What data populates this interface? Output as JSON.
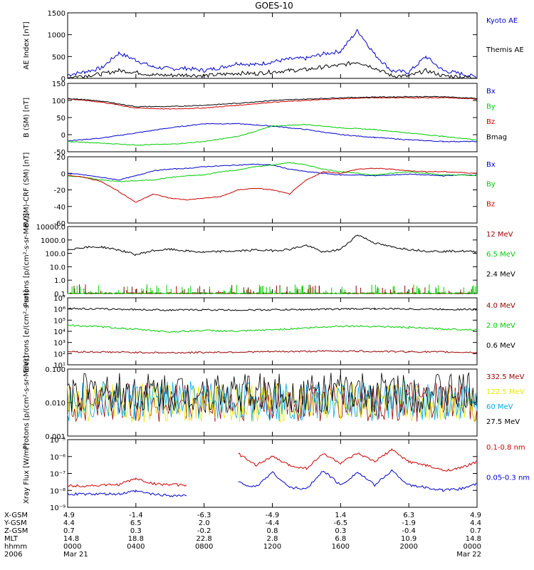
{
  "title": "GOES-10",
  "colors": {
    "black": "#000000",
    "blue": "#0000cc",
    "red": "#cc0000",
    "green": "#00cc00",
    "darkred": "#990000",
    "yellow": "#e6e600",
    "cyan": "#00aaee"
  },
  "chart_data": [
    {
      "type": "line",
      "ylabel": "AE Index [nT]",
      "ylim": [
        0,
        1500
      ],
      "yscale": "linear",
      "yticks": [
        "0",
        "500",
        "1000",
        "1500"
      ],
      "x": [
        0,
        1,
        2,
        3,
        4,
        5,
        6,
        7,
        8,
        9,
        10,
        11,
        12,
        13,
        14,
        15,
        16,
        17,
        18,
        19,
        20,
        21,
        22,
        23,
        24
      ],
      "series": [
        {
          "name": "Kyoto AE",
          "color": "blue",
          "values": [
            80,
            150,
            240,
            580,
            420,
            260,
            220,
            230,
            180,
            250,
            350,
            310,
            380,
            440,
            460,
            560,
            620,
            1100,
            550,
            170,
            140,
            500,
            180,
            110,
            30
          ]
        },
        {
          "name": "Themis AE",
          "color": "black",
          "values": [
            30,
            60,
            100,
            180,
            140,
            80,
            70,
            80,
            60,
            90,
            120,
            110,
            150,
            180,
            200,
            260,
            300,
            380,
            240,
            60,
            50,
            180,
            60,
            40,
            10
          ]
        }
      ]
    },
    {
      "type": "line",
      "ylabel": "B (SM) [nT]",
      "ylim": [
        -50,
        150
      ],
      "yscale": "linear",
      "yticks": [
        "-50",
        "0",
        "50",
        "100",
        "150"
      ],
      "x": [
        0,
        2,
        4,
        6,
        8,
        10,
        12,
        14,
        16,
        18,
        20,
        22,
        24
      ],
      "series": [
        {
          "name": "Bx",
          "color": "blue",
          "values": [
            -18,
            -10,
            5,
            20,
            32,
            32,
            25,
            15,
            0,
            -8,
            -15,
            -20,
            -20
          ]
        },
        {
          "name": "By",
          "color": "green",
          "values": [
            -20,
            -25,
            -30,
            -28,
            -20,
            -5,
            25,
            30,
            20,
            15,
            5,
            -5,
            -15
          ]
        },
        {
          "name": "Bz",
          "color": "red",
          "values": [
            105,
            95,
            78,
            75,
            78,
            86,
            95,
            100,
            105,
            108,
            108,
            108,
            104
          ]
        },
        {
          "name": "Bmag",
          "color": "black",
          "values": [
            106,
            98,
            82,
            82,
            86,
            92,
            100,
            104,
            108,
            110,
            111,
            111,
            106
          ]
        }
      ]
    },
    {
      "type": "line",
      "ylabel": "B (SM)-CRF (SM) [nT]",
      "ylim": [
        -60,
        20
      ],
      "yscale": "linear",
      "yticks": [
        "-60",
        "-40",
        "-20",
        "0",
        "20"
      ],
      "x": [
        0,
        1,
        2,
        3,
        4,
        5,
        6,
        7,
        8,
        9,
        10,
        11,
        12,
        13,
        14,
        15,
        16,
        17,
        18,
        19,
        20,
        21,
        22,
        23,
        24
      ],
      "series": [
        {
          "name": "Bx",
          "color": "blue",
          "values": [
            0,
            -2,
            -5,
            -8,
            -3,
            3,
            5,
            6,
            8,
            9,
            10,
            11,
            10,
            5,
            2,
            0,
            -2,
            -2,
            -3,
            -2,
            -1,
            -2,
            -3,
            -2,
            -2
          ]
        },
        {
          "name": "By",
          "color": "green",
          "values": [
            -3,
            -5,
            -8,
            -10,
            -9,
            -8,
            -5,
            -3,
            -2,
            2,
            4,
            8,
            10,
            13,
            10,
            5,
            2,
            0,
            -2,
            0,
            2,
            0,
            -2,
            -2,
            -3
          ]
        },
        {
          "name": "Bz",
          "color": "red",
          "values": [
            -2,
            -5,
            -10,
            -22,
            -35,
            -25,
            -30,
            -32,
            -30,
            -28,
            -20,
            -18,
            -20,
            -25,
            -8,
            2,
            0,
            5,
            6,
            5,
            3,
            2,
            2,
            1,
            0
          ]
        }
      ]
    },
    {
      "type": "line",
      "ylabel": "Protons [p/(cm²-s-sr-MeV)]",
      "ylim": [
        0.1,
        10000
      ],
      "yscale": "log",
      "yticks": [
        "0.1",
        "1.0",
        "10.0",
        "100.0",
        "1000.0",
        "10000.0"
      ],
      "x": [
        0,
        1,
        2,
        3,
        4,
        5,
        6,
        7,
        8,
        9,
        10,
        11,
        12,
        13,
        14,
        15,
        16,
        17,
        18,
        19,
        20,
        21,
        22,
        23,
        24
      ],
      "series": [
        {
          "name": "12 MeV",
          "color": "darkred",
          "values": [
            0.1,
            0.1,
            0.1,
            0.1,
            0.1,
            0.1,
            0.1,
            0.1,
            0.1,
            0.1,
            0.1,
            0.1,
            0.1,
            0.1,
            0.1,
            0.1,
            0.1,
            0.1,
            0.1,
            0.1,
            0.1,
            0.1,
            0.1,
            0.1,
            0.1
          ]
        },
        {
          "name": "6.5 MeV",
          "color": "green",
          "values": [
            0.1,
            0.1,
            0.1,
            0.1,
            0.1,
            0.1,
            0.1,
            0.1,
            0.1,
            0.1,
            0.1,
            0.1,
            0.1,
            0.1,
            0.1,
            0.1,
            0.1,
            0.1,
            0.1,
            0.1,
            0.1,
            0.1,
            0.1,
            0.1,
            0.1
          ]
        },
        {
          "name": "2.4 MeV",
          "color": "black",
          "values": [
            200,
            280,
            300,
            180,
            80,
            160,
            200,
            150,
            120,
            140,
            150,
            180,
            160,
            200,
            400,
            120,
            200,
            2500,
            600,
            300,
            200,
            150,
            140,
            150,
            130
          ]
        }
      ]
    },
    {
      "type": "line",
      "ylabel": "Electrons [e/(cm²-s-sr)]",
      "ylim": [
        10,
        10000000
      ],
      "yscale": "log",
      "yticks": [
        "10¹",
        "10²",
        "10³",
        "10⁴",
        "10⁵",
        "10⁶",
        "10⁷"
      ],
      "x": [
        0,
        2,
        4,
        6,
        8,
        10,
        12,
        14,
        16,
        18,
        20,
        22,
        24
      ],
      "series": [
        {
          "name": "4.0 MeV",
          "color": "darkred",
          "values": [
            150,
            140,
            130,
            120,
            130,
            140,
            150,
            160,
            170,
            160,
            150,
            140,
            130
          ]
        },
        {
          "name": "2.0 MeV",
          "color": "green",
          "values": [
            35000,
            25000,
            15000,
            9000,
            12000,
            10000,
            14000,
            20000,
            30000,
            28000,
            22000,
            16000,
            14000
          ]
        },
        {
          "name": "0.6 MeV",
          "color": "black",
          "values": [
            1100000,
            1000000,
            900000,
            800000,
            850000,
            800000,
            850000,
            900000,
            1000000,
            1050000,
            1000000,
            950000,
            900000
          ]
        }
      ]
    },
    {
      "type": "line",
      "ylabel": "Protons [p/(cm²-s-sr-MeV)]",
      "ylim": [
        0.001,
        0.1
      ],
      "yscale": "log",
      "yticks": [
        "0.001",
        "0.010",
        "0.100"
      ],
      "x": [
        0,
        24
      ],
      "series": [
        {
          "name": "332.5 MeV",
          "color": "darkred",
          "values": [
            0.01,
            0.01
          ]
        },
        {
          "name": "122.5 MeV",
          "color": "yellow",
          "values": [
            0.01,
            0.01
          ]
        },
        {
          "name": "60 MeV",
          "color": "cyan",
          "values": [
            0.011,
            0.011
          ]
        },
        {
          "name": "27.5 MeV",
          "color": "black",
          "values": [
            0.02,
            0.02
          ]
        }
      ]
    },
    {
      "type": "line",
      "ylabel": "Xray Flux [W/m²]",
      "ylim": [
        1e-09,
        1e-05
      ],
      "yscale": "log",
      "yticks": [
        "10⁻⁹",
        "10⁻⁸",
        "10⁻⁷",
        "10⁻⁶",
        "10⁻⁵"
      ],
      "x": [
        0,
        2,
        3,
        4,
        5,
        6,
        7,
        8,
        9,
        10,
        11,
        12,
        13,
        14,
        15,
        16,
        17,
        18,
        19,
        20,
        21,
        22,
        23,
        24
      ],
      "series": [
        {
          "name": "0.1-0.8 nm",
          "color": "red",
          "values": [
            1.8e-08,
            2e-08,
            2.2e-08,
            5e-08,
            2.5e-08,
            2.2e-08,
            2e-08,
            null,
            null,
            1.5e-06,
            3e-07,
            1e-06,
            3e-07,
            2e-07,
            1.5e-06,
            4e-07,
            1.5e-06,
            5e-07,
            2.5e-06,
            5e-07,
            3e-07,
            1.5e-07,
            2e-07,
            5e-07
          ]
        },
        {
          "name": "0.05-0.3 nm",
          "color": "blue",
          "values": [
            6e-09,
            6e-09,
            6e-09,
            9e-09,
            6e-09,
            5e-09,
            5e-09,
            null,
            null,
            3e-08,
            1.5e-08,
            1.2e-07,
            1.5e-08,
            1.2e-08,
            1.5e-07,
            2e-08,
            1.2e-07,
            2e-08,
            1.5e-07,
            2e-08,
            1.5e-08,
            1e-08,
            1.2e-08,
            2.5e-08
          ]
        }
      ]
    }
  ],
  "axis_table": {
    "row_labels": [
      "X-GSM",
      "Y-GSM",
      "Z-GSM",
      "MLT",
      "hhmm",
      "2006"
    ],
    "columns": [
      {
        "values": [
          "4.9",
          "4.4",
          "0.7",
          "14.8",
          "0000",
          "Mar 21"
        ]
      },
      {
        "values": [
          "-1.4",
          "6.5",
          "0.3",
          "18.8",
          "0400",
          ""
        ]
      },
      {
        "values": [
          "-6.3",
          "2.0",
          "-0.2",
          "22.8",
          "0800",
          ""
        ]
      },
      {
        "values": [
          "-4.9",
          "-4.4",
          "0.8",
          "2.8",
          "1200",
          ""
        ]
      },
      {
        "values": [
          "1.4",
          "-6.5",
          "0.3",
          "6.8",
          "1600",
          ""
        ]
      },
      {
        "values": [
          "6.3",
          "-1.9",
          "-0.4",
          "10.9",
          "2000",
          ""
        ]
      },
      {
        "values": [
          "4.9",
          "4.4",
          "0.7",
          "14.8",
          "0000",
          "Mar 22"
        ]
      }
    ]
  }
}
